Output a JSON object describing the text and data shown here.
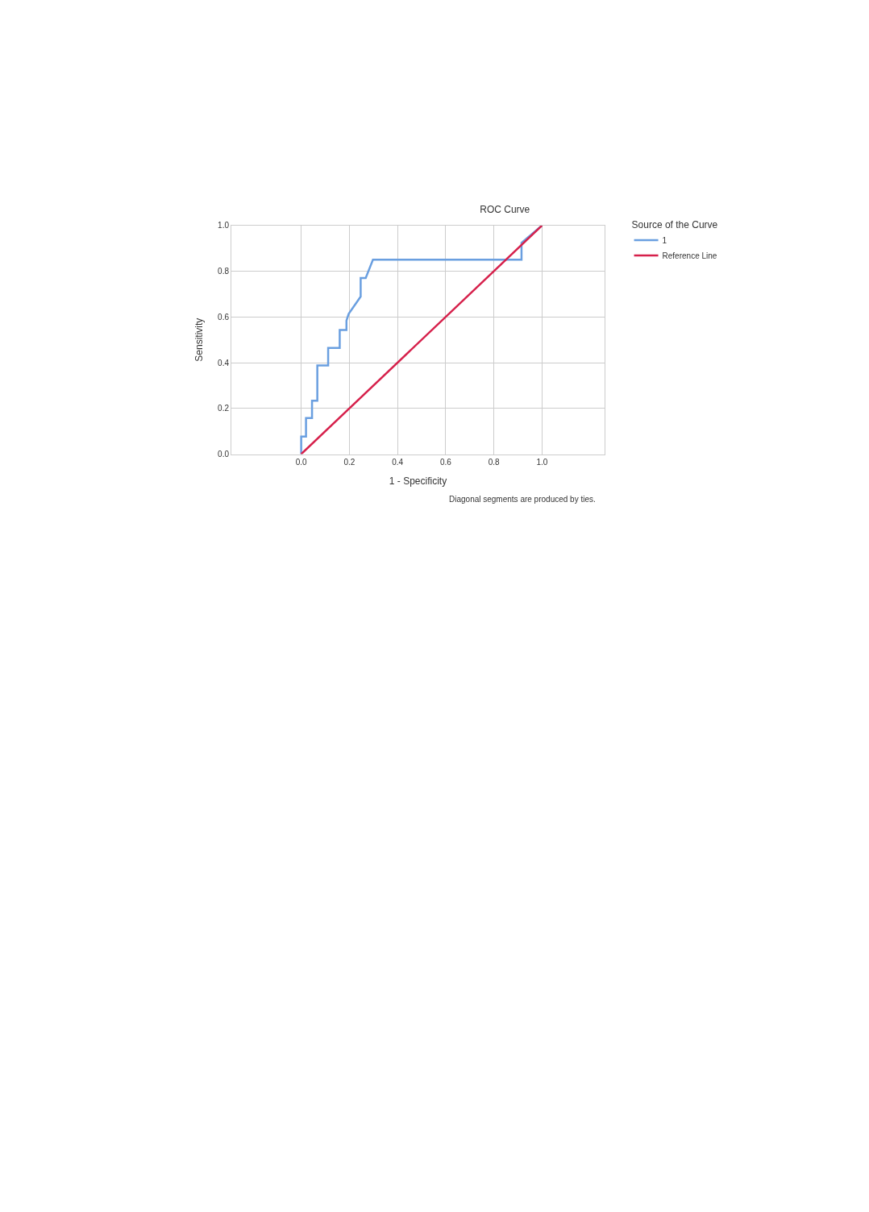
{
  "chart_data": {
    "type": "line",
    "title": "ROC Curve",
    "xlabel": "1 - Specificity",
    "ylabel": "Sensitivity",
    "legend_title": "Source of the Curve",
    "series": [
      {
        "name": "1",
        "color": "#6a9fe0",
        "x": [
          0,
          0,
          0.02,
          0.02,
          0.045,
          0.045,
          0.067,
          0.067,
          0.112,
          0.112,
          0.16,
          0.16,
          0.188,
          0.188,
          0.197,
          0.247,
          0.247,
          0.268,
          0.298,
          0.915,
          0.915,
          1
        ],
        "values": [
          0,
          0.077,
          0.077,
          0.158,
          0.158,
          0.234,
          0.234,
          0.388,
          0.388,
          0.464,
          0.464,
          0.543,
          0.543,
          0.584,
          0.613,
          0.689,
          0.77,
          0.77,
          0.85,
          0.85,
          0.924,
          1
        ]
      },
      {
        "name": "Reference Line",
        "color": "#d6204b",
        "x": [
          0,
          1
        ],
        "values": [
          0,
          1
        ]
      }
    ],
    "xlim": [
      -0.29,
      1.26
    ],
    "ylim": [
      0,
      1
    ],
    "xticks": [
      {
        "value": 0,
        "label": "0.0"
      },
      {
        "value": 0.2,
        "label": "0.2"
      },
      {
        "value": 0.4,
        "label": "0.4"
      },
      {
        "value": 0.6,
        "label": "0.6"
      },
      {
        "value": 0.8,
        "label": "0.8"
      },
      {
        "value": 1,
        "label": "1.0"
      }
    ],
    "yticks": [
      {
        "value": 0,
        "label": "0.0"
      },
      {
        "value": 0.2,
        "label": "0.2"
      },
      {
        "value": 0.4,
        "label": "0.4"
      },
      {
        "value": 0.6,
        "label": "0.6"
      },
      {
        "value": 0.8,
        "label": "0.8"
      },
      {
        "value": 1,
        "label": "1.0"
      }
    ],
    "grid": true,
    "legend": "top right",
    "marker": "none",
    "line_style": "solid",
    "annotations": [
      "Diagonal segments are produced by ties."
    ]
  }
}
